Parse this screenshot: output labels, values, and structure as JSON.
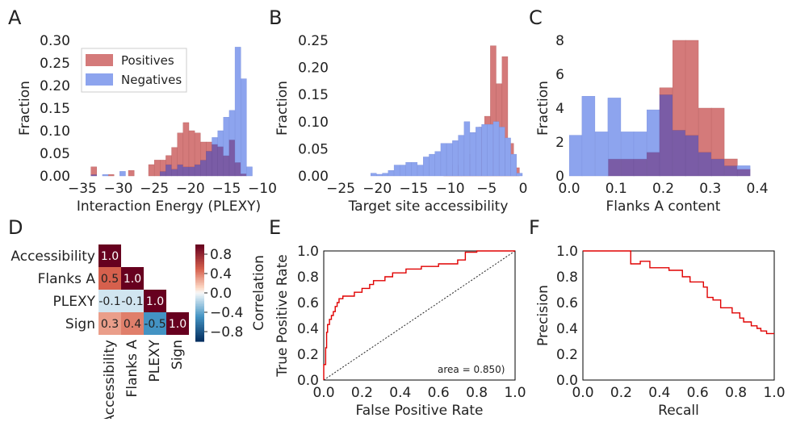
{
  "colors": {
    "positives": "#d47a7a",
    "negatives": "#8da4ee",
    "overlap": "#7a5ca6",
    "roc": "#e00000",
    "pr": "#e00000"
  },
  "chart_data": [
    {
      "panel": "A",
      "type": "bar",
      "xlabel": "Interaction Energy (PLEXY)",
      "ylabel": "Fraction",
      "xlim": [
        -36,
        -10
      ],
      "ylim": [
        0,
        0.3
      ],
      "xticks": [
        "−35",
        "−30",
        "−25",
        "−20",
        "−15",
        "−10"
      ],
      "yticks": [
        "0.00",
        "0.05",
        "0.10",
        "0.15",
        "0.20",
        "0.25",
        "0.30"
      ],
      "legend": {
        "placement": "upper-left",
        "entries": [
          "Positives",
          "Negatives"
        ]
      },
      "bin_width": 0.8,
      "series": [
        {
          "name": "Positives",
          "bins": [
            [
              -33.4,
              0.02
            ],
            [
              -31.0,
              0.003
            ],
            [
              -28.2,
              0.012
            ],
            [
              -25.4,
              0.025
            ],
            [
              -24.6,
              0.035
            ],
            [
              -23.8,
              0.035
            ],
            [
              -23.0,
              0.045
            ],
            [
              -22.2,
              0.063
            ],
            [
              -21.4,
              0.095
            ],
            [
              -20.6,
              0.118
            ],
            [
              -19.8,
              0.1
            ],
            [
              -19.0,
              0.095
            ],
            [
              -18.2,
              0.075
            ],
            [
              -17.4,
              0.075
            ],
            [
              -16.6,
              0.07
            ],
            [
              -15.8,
              0.065
            ],
            [
              -15.0,
              0.045
            ],
            [
              -14.2,
              0.08
            ],
            [
              -13.4,
              0.03
            ],
            [
              -12.6,
              0.005
            ]
          ]
        },
        {
          "name": "Negatives",
          "bins": [
            [
              -33.4,
              0.003
            ],
            [
              -31.8,
              0.003
            ],
            [
              -29.4,
              0.01
            ],
            [
              -23.8,
              0.01
            ],
            [
              -23.0,
              0.025
            ],
            [
              -22.2,
              0.015
            ],
            [
              -21.4,
              0.025
            ],
            [
              -20.6,
              0.02
            ],
            [
              -19.8,
              0.02
            ],
            [
              -19.0,
              0.025
            ],
            [
              -18.2,
              0.035
            ],
            [
              -17.4,
              0.055
            ],
            [
              -16.6,
              0.085
            ],
            [
              -15.8,
              0.1
            ],
            [
              -15.0,
              0.13
            ],
            [
              -14.2,
              0.145
            ],
            [
              -13.4,
              0.285
            ],
            [
              -12.6,
              0.215
            ],
            [
              -11.8,
              0.02
            ]
          ]
        }
      ]
    },
    {
      "panel": "B",
      "type": "bar",
      "xlabel": "Target site accessibility",
      "ylabel": "Fraction",
      "xlim": [
        -26,
        0
      ],
      "ylim": [
        0,
        0.25
      ],
      "xticks": [
        "−25",
        "−20",
        "−15",
        "−10",
        "−5",
        "0"
      ],
      "yticks": [
        "0.00",
        "0.05",
        "0.10",
        "0.15",
        "0.20",
        "0.25"
      ],
      "bin_width": 0.78,
      "series": [
        {
          "name": "Positives",
          "bins": [
            [
              -10.5,
              0.005
            ],
            [
              -9.7,
              0.02
            ],
            [
              -8.9,
              0.02
            ],
            [
              -8.1,
              0.03
            ],
            [
              -7.3,
              0.04
            ],
            [
              -6.5,
              0.08
            ],
            [
              -5.7,
              0.09
            ],
            [
              -4.9,
              0.11
            ],
            [
              -4.1,
              0.24
            ],
            [
              -3.3,
              0.17
            ],
            [
              -2.5,
              0.22
            ],
            [
              -1.7,
              0.06
            ],
            [
              -0.9,
              0.015
            ]
          ]
        },
        {
          "name": "Negatives",
          "bins": [
            [
              -20.5,
              0.005
            ],
            [
              -19.7,
              0.003
            ],
            [
              -18.9,
              0.005
            ],
            [
              -18.1,
              0.01
            ],
            [
              -17.3,
              0.02
            ],
            [
              -16.5,
              0.02
            ],
            [
              -15.7,
              0.025
            ],
            [
              -14.9,
              0.025
            ],
            [
              -14.1,
              0.02
            ],
            [
              -13.3,
              0.035
            ],
            [
              -12.5,
              0.04
            ],
            [
              -11.7,
              0.045
            ],
            [
              -10.9,
              0.06
            ],
            [
              -10.1,
              0.06
            ],
            [
              -9.3,
              0.065
            ],
            [
              -8.5,
              0.075
            ],
            [
              -7.7,
              0.1
            ],
            [
              -6.9,
              0.08
            ],
            [
              -6.1,
              0.09
            ],
            [
              -5.3,
              0.095
            ],
            [
              -4.5,
              0.095
            ],
            [
              -3.7,
              0.1
            ],
            [
              -2.9,
              0.09
            ],
            [
              -2.1,
              0.07
            ],
            [
              -1.3,
              0.04
            ],
            [
              -0.5,
              0.005
            ]
          ]
        }
      ]
    },
    {
      "panel": "C",
      "type": "bar",
      "xlabel": "Flanks A content",
      "ylabel": "Fraction",
      "xlim": [
        0,
        0.4
      ],
      "ylim": [
        0,
        8
      ],
      "xticks": [
        "0.0",
        "0.1",
        "0.2",
        "0.3",
        "0.4"
      ],
      "yticks": [
        "0",
        "2",
        "4",
        "6",
        "8"
      ],
      "bin_width": 0.0275,
      "series": [
        {
          "name": "Positives",
          "bins": [
            [
              0.096,
              1.0
            ],
            [
              0.124,
              1.0
            ],
            [
              0.151,
              1.0
            ],
            [
              0.179,
              1.4
            ],
            [
              0.206,
              5.2
            ],
            [
              0.234,
              8.0
            ],
            [
              0.261,
              8.0
            ],
            [
              0.289,
              4.0
            ],
            [
              0.316,
              4.0
            ],
            [
              0.344,
              1.0
            ],
            [
              0.371,
              0.4
            ]
          ]
        },
        {
          "name": "Negatives",
          "bins": [
            [
              0.014,
              2.4
            ],
            [
              0.041,
              4.7
            ],
            [
              0.069,
              2.6
            ],
            [
              0.096,
              4.6
            ],
            [
              0.124,
              2.6
            ],
            [
              0.151,
              2.6
            ],
            [
              0.179,
              3.9
            ],
            [
              0.206,
              4.8
            ],
            [
              0.234,
              2.7
            ],
            [
              0.261,
              2.4
            ],
            [
              0.289,
              1.4
            ],
            [
              0.316,
              1.0
            ],
            [
              0.344,
              0.6
            ],
            [
              0.371,
              0.6
            ]
          ]
        }
      ]
    },
    {
      "panel": "D",
      "type": "heatmap",
      "labels": [
        "Accessibility",
        "Flanks A",
        "PLEXY",
        "Sign"
      ],
      "cells": [
        [
          0,
          0,
          "1.0",
          1.0
        ],
        [
          1,
          0,
          "0.5",
          0.5
        ],
        [
          1,
          1,
          "1.0",
          1.0
        ],
        [
          2,
          0,
          "-0.1",
          -0.1
        ],
        [
          2,
          1,
          "-0.1",
          -0.1
        ],
        [
          2,
          2,
          "1.0",
          1.0
        ],
        [
          3,
          0,
          "0.3",
          0.3
        ],
        [
          3,
          1,
          "0.4",
          0.4
        ],
        [
          3,
          2,
          "-0.5",
          -0.5
        ],
        [
          3,
          3,
          "1.0",
          1.0
        ]
      ],
      "colorbar": {
        "label": "Correlation",
        "ticks": [
          "0.8",
          "0.4",
          "0.0",
          "−0.4",
          "−0.8"
        ],
        "range": [
          -1,
          1
        ]
      }
    },
    {
      "panel": "E",
      "type": "line",
      "xlabel": "False Positive Rate",
      "ylabel": "True Positive Rate",
      "xlim": [
        0,
        1
      ],
      "ylim": [
        0,
        1
      ],
      "xticks": [
        "0.0",
        "0.2",
        "0.4",
        "0.6",
        "0.8",
        "1.0"
      ],
      "yticks": [
        "0.0",
        "0.2",
        "0.4",
        "0.6",
        "0.8",
        "1.0"
      ],
      "annotation": "area = 0.850)",
      "series": [
        {
          "name": "",
          "points": [
            [
              0,
              0
            ],
            [
              0,
              0.12
            ],
            [
              0.01,
              0.12
            ],
            [
              0.01,
              0.25
            ],
            [
              0.015,
              0.25
            ],
            [
              0.015,
              0.37
            ],
            [
              0.02,
              0.37
            ],
            [
              0.02,
              0.43
            ],
            [
              0.03,
              0.43
            ],
            [
              0.03,
              0.47
            ],
            [
              0.04,
              0.47
            ],
            [
              0.04,
              0.5
            ],
            [
              0.05,
              0.5
            ],
            [
              0.05,
              0.53
            ],
            [
              0.06,
              0.53
            ],
            [
              0.06,
              0.57
            ],
            [
              0.07,
              0.57
            ],
            [
              0.07,
              0.6
            ],
            [
              0.08,
              0.6
            ],
            [
              0.08,
              0.63
            ],
            [
              0.1,
              0.63
            ],
            [
              0.1,
              0.65
            ],
            [
              0.16,
              0.65
            ],
            [
              0.16,
              0.68
            ],
            [
              0.2,
              0.68
            ],
            [
              0.2,
              0.71
            ],
            [
              0.24,
              0.71
            ],
            [
              0.24,
              0.74
            ],
            [
              0.26,
              0.74
            ],
            [
              0.26,
              0.77
            ],
            [
              0.32,
              0.77
            ],
            [
              0.32,
              0.8
            ],
            [
              0.36,
              0.8
            ],
            [
              0.36,
              0.83
            ],
            [
              0.43,
              0.83
            ],
            [
              0.43,
              0.86
            ],
            [
              0.51,
              0.86
            ],
            [
              0.51,
              0.88
            ],
            [
              0.6,
              0.88
            ],
            [
              0.6,
              0.9
            ],
            [
              0.7,
              0.9
            ],
            [
              0.7,
              0.93
            ],
            [
              0.74,
              0.93
            ],
            [
              0.74,
              0.99
            ],
            [
              0.8,
              0.99
            ],
            [
              0.8,
              1.0
            ],
            [
              1.0,
              1.0
            ]
          ]
        },
        {
          "name": "",
          "style": "diagonal",
          "points": [
            [
              0,
              0
            ],
            [
              1,
              1
            ]
          ]
        }
      ]
    },
    {
      "panel": "F",
      "type": "line",
      "xlabel": "Recall",
      "ylabel": "Precision",
      "xlim": [
        0,
        1
      ],
      "ylim": [
        0,
        1
      ],
      "xticks": [
        "0.0",
        "0.2",
        "0.4",
        "0.6",
        "0.8",
        "1.0"
      ],
      "yticks": [
        "0.0",
        "0.2",
        "0.4",
        "0.6",
        "0.8",
        "1.0"
      ],
      "series": [
        {
          "name": "",
          "points": [
            [
              0,
              1.0
            ],
            [
              0.25,
              1.0
            ],
            [
              0.25,
              0.9
            ],
            [
              0.3,
              0.9
            ],
            [
              0.3,
              0.92
            ],
            [
              0.35,
              0.92
            ],
            [
              0.35,
              0.87
            ],
            [
              0.45,
              0.87
            ],
            [
              0.45,
              0.85
            ],
            [
              0.52,
              0.85
            ],
            [
              0.52,
              0.8
            ],
            [
              0.56,
              0.8
            ],
            [
              0.56,
              0.76
            ],
            [
              0.63,
              0.76
            ],
            [
              0.63,
              0.72
            ],
            [
              0.65,
              0.72
            ],
            [
              0.65,
              0.64
            ],
            [
              0.68,
              0.64
            ],
            [
              0.68,
              0.62
            ],
            [
              0.72,
              0.62
            ],
            [
              0.72,
              0.56
            ],
            [
              0.78,
              0.56
            ],
            [
              0.78,
              0.52
            ],
            [
              0.82,
              0.52
            ],
            [
              0.82,
              0.48
            ],
            [
              0.84,
              0.48
            ],
            [
              0.84,
              0.45
            ],
            [
              0.88,
              0.45
            ],
            [
              0.88,
              0.42
            ],
            [
              0.91,
              0.42
            ],
            [
              0.91,
              0.4
            ],
            [
              0.93,
              0.4
            ],
            [
              0.93,
              0.38
            ],
            [
              0.96,
              0.38
            ],
            [
              0.96,
              0.36
            ],
            [
              1.0,
              0.36
            ]
          ]
        }
      ]
    }
  ],
  "letters": [
    "A",
    "B",
    "C",
    "D",
    "E",
    "F"
  ]
}
